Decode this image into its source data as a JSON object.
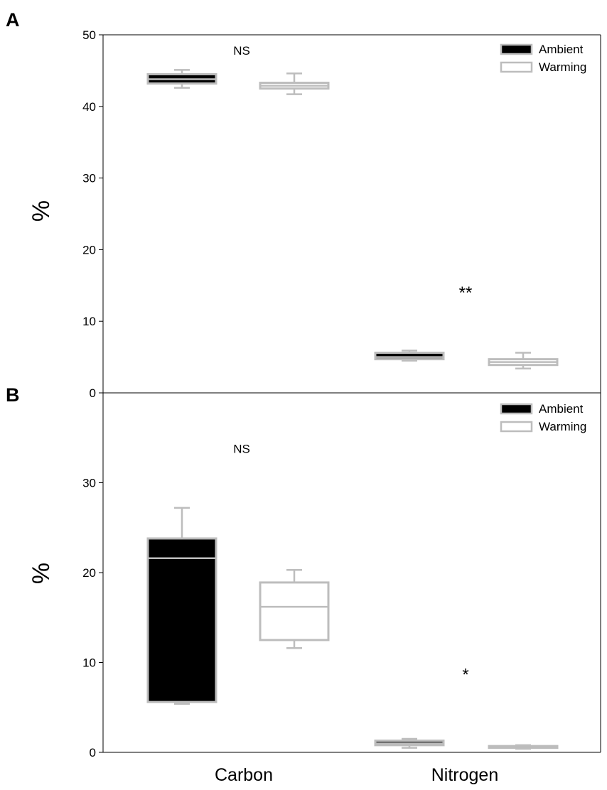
{
  "chart_data": [
    {
      "type": "box",
      "panel": "A",
      "categories": [
        "Carbon",
        "Nitrogen"
      ],
      "ylabel": "%",
      "xlabel": "",
      "ylim": [
        0,
        50
      ],
      "yticks": [
        "0",
        "10",
        "20",
        "30",
        "40",
        "50"
      ],
      "legend": {
        "position": "top-right",
        "entries": [
          "Ambient",
          "Warming"
        ]
      },
      "colors": {
        "Ambient": "#000000",
        "Warming": "#ffffff",
        "outline": "#bdbdbd"
      },
      "series": [
        {
          "name": "Ambient",
          "boxes": [
            {
              "category": "Carbon",
              "min": 42.6,
              "q1": 43.2,
              "median": 43.8,
              "q3": 44.5,
              "max": 45.1
            },
            {
              "category": "Nitrogen",
              "min": 4.5,
              "q1": 4.7,
              "median": 5.0,
              "q3": 5.6,
              "max": 5.9
            }
          ]
        },
        {
          "name": "Warming",
          "boxes": [
            {
              "category": "Carbon",
              "min": 41.7,
              "q1": 42.5,
              "median": 42.9,
              "q3": 43.3,
              "max": 44.6
            },
            {
              "category": "Nitrogen",
              "min": 3.4,
              "q1": 3.9,
              "median": 4.3,
              "q3": 4.7,
              "max": 5.6
            }
          ]
        }
      ],
      "annotations": [
        {
          "text": "NS",
          "category": "Carbon",
          "y": 47.8
        },
        {
          "text": "**",
          "category": "Nitrogen",
          "y": 13.8
        }
      ]
    },
    {
      "type": "box",
      "panel": "B",
      "categories": [
        "Carbon",
        "Nitrogen"
      ],
      "ylabel": "%",
      "xlabel": "",
      "ylim": [
        0,
        40
      ],
      "yticks": [
        "0",
        "10",
        "20",
        "30"
      ],
      "legend": {
        "position": "top-right",
        "entries": [
          "Ambient",
          "Warming"
        ]
      },
      "colors": {
        "Ambient": "#000000",
        "Warming": "#ffffff",
        "outline": "#bdbdbd"
      },
      "series": [
        {
          "name": "Ambient",
          "boxes": [
            {
              "category": "Carbon",
              "min": 5.4,
              "q1": 5.6,
              "median": 21.6,
              "q3": 23.8,
              "max": 27.2
            },
            {
              "category": "Nitrogen",
              "min": 0.5,
              "q1": 0.8,
              "median": 1.0,
              "q3": 1.3,
              "max": 1.5
            }
          ]
        },
        {
          "name": "Warming",
          "boxes": [
            {
              "category": "Carbon",
              "min": 11.6,
              "q1": 12.5,
              "median": 16.2,
              "q3": 18.9,
              "max": 20.3
            },
            {
              "category": "Nitrogen",
              "min": 0.4,
              "q1": 0.5,
              "median": 0.6,
              "q3": 0.7,
              "max": 0.8
            }
          ]
        }
      ],
      "annotations": [
        {
          "text": "NS",
          "category": "Carbon",
          "y": 33.8
        },
        {
          "text": "*",
          "category": "Nitrogen",
          "y": 8.5
        }
      ]
    }
  ],
  "panel_labels": [
    "A",
    "B"
  ],
  "x_category_labels": [
    "Carbon",
    "Nitrogen"
  ]
}
